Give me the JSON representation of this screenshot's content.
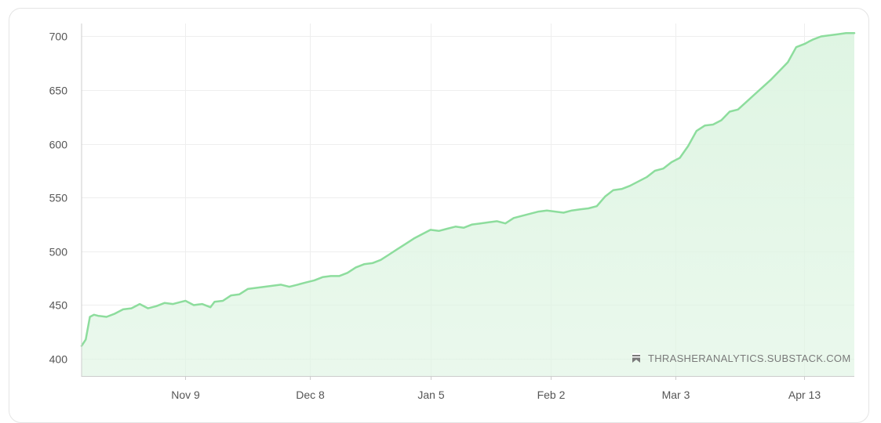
{
  "chart_data": {
    "type": "area",
    "title": "",
    "xlabel": "",
    "ylabel": "",
    "ylim": [
      384,
      712
    ],
    "yticks": [
      400,
      450,
      500,
      550,
      600,
      650,
      700
    ],
    "ytick_labels": [
      "400",
      "450",
      "500",
      "550",
      "600",
      "650",
      "700"
    ],
    "xticks": [
      "Nov 9",
      "Dec 8",
      "Jan 5",
      "Feb 2",
      "Mar 3",
      "Apr 13"
    ],
    "grid": true,
    "legend": "none",
    "colors": {
      "line": "#8ddd9d",
      "fill": "#dff5e3",
      "grid": "#eeeeee",
      "axis": "#cccccc"
    },
    "x_range": [
      0,
      186
    ],
    "xtick_positions": [
      25,
      55,
      84,
      113,
      143,
      174
    ],
    "series": [
      {
        "x": [
          0,
          1,
          2,
          3,
          4,
          6,
          8,
          10,
          12,
          14,
          16,
          18,
          20,
          22,
          24,
          25,
          27,
          29,
          31,
          32,
          34,
          36,
          38,
          40,
          42,
          44,
          46,
          48,
          50,
          52,
          54,
          56,
          58,
          60,
          62,
          64,
          66,
          68,
          70,
          72,
          74,
          76,
          78,
          80,
          82,
          84,
          86,
          88,
          90,
          92,
          94,
          96,
          98,
          100,
          102,
          104,
          106,
          108,
          110,
          112,
          114,
          116,
          118,
          120,
          122,
          124,
          126,
          128,
          130,
          132,
          134,
          136,
          138,
          140,
          142,
          144,
          146,
          148,
          150,
          152,
          154,
          156,
          158,
          160,
          162,
          164,
          166,
          168,
          170,
          172,
          174,
          175,
          176,
          178,
          180,
          182,
          184,
          186
        ],
        "values": [
          412,
          418,
          439,
          441,
          440,
          439,
          442,
          446,
          447,
          451,
          447,
          449,
          452,
          451,
          453,
          454,
          450,
          451,
          448,
          453,
          454,
          459,
          460,
          465,
          466,
          467,
          468,
          469,
          467,
          469,
          471,
          473,
          476,
          477,
          477,
          480,
          485,
          488,
          489,
          492,
          497,
          502,
          507,
          512,
          516,
          520,
          519,
          521,
          523,
          522,
          525,
          526,
          527,
          528,
          526,
          531,
          533,
          535,
          537,
          538,
          537,
          536,
          538,
          539,
          540,
          542,
          551,
          557,
          558,
          561,
          565,
          569,
          575,
          577,
          583,
          587,
          598,
          612,
          617,
          618,
          622,
          630,
          632,
          639,
          646,
          653,
          660,
          668,
          676,
          690,
          693,
          695,
          697,
          700,
          701,
          702,
          703,
          703
        ]
      }
    ]
  },
  "watermark": {
    "icon": "bookmark-icon",
    "text": "THRASHERANALYTICS.SUBSTACK.COM"
  }
}
